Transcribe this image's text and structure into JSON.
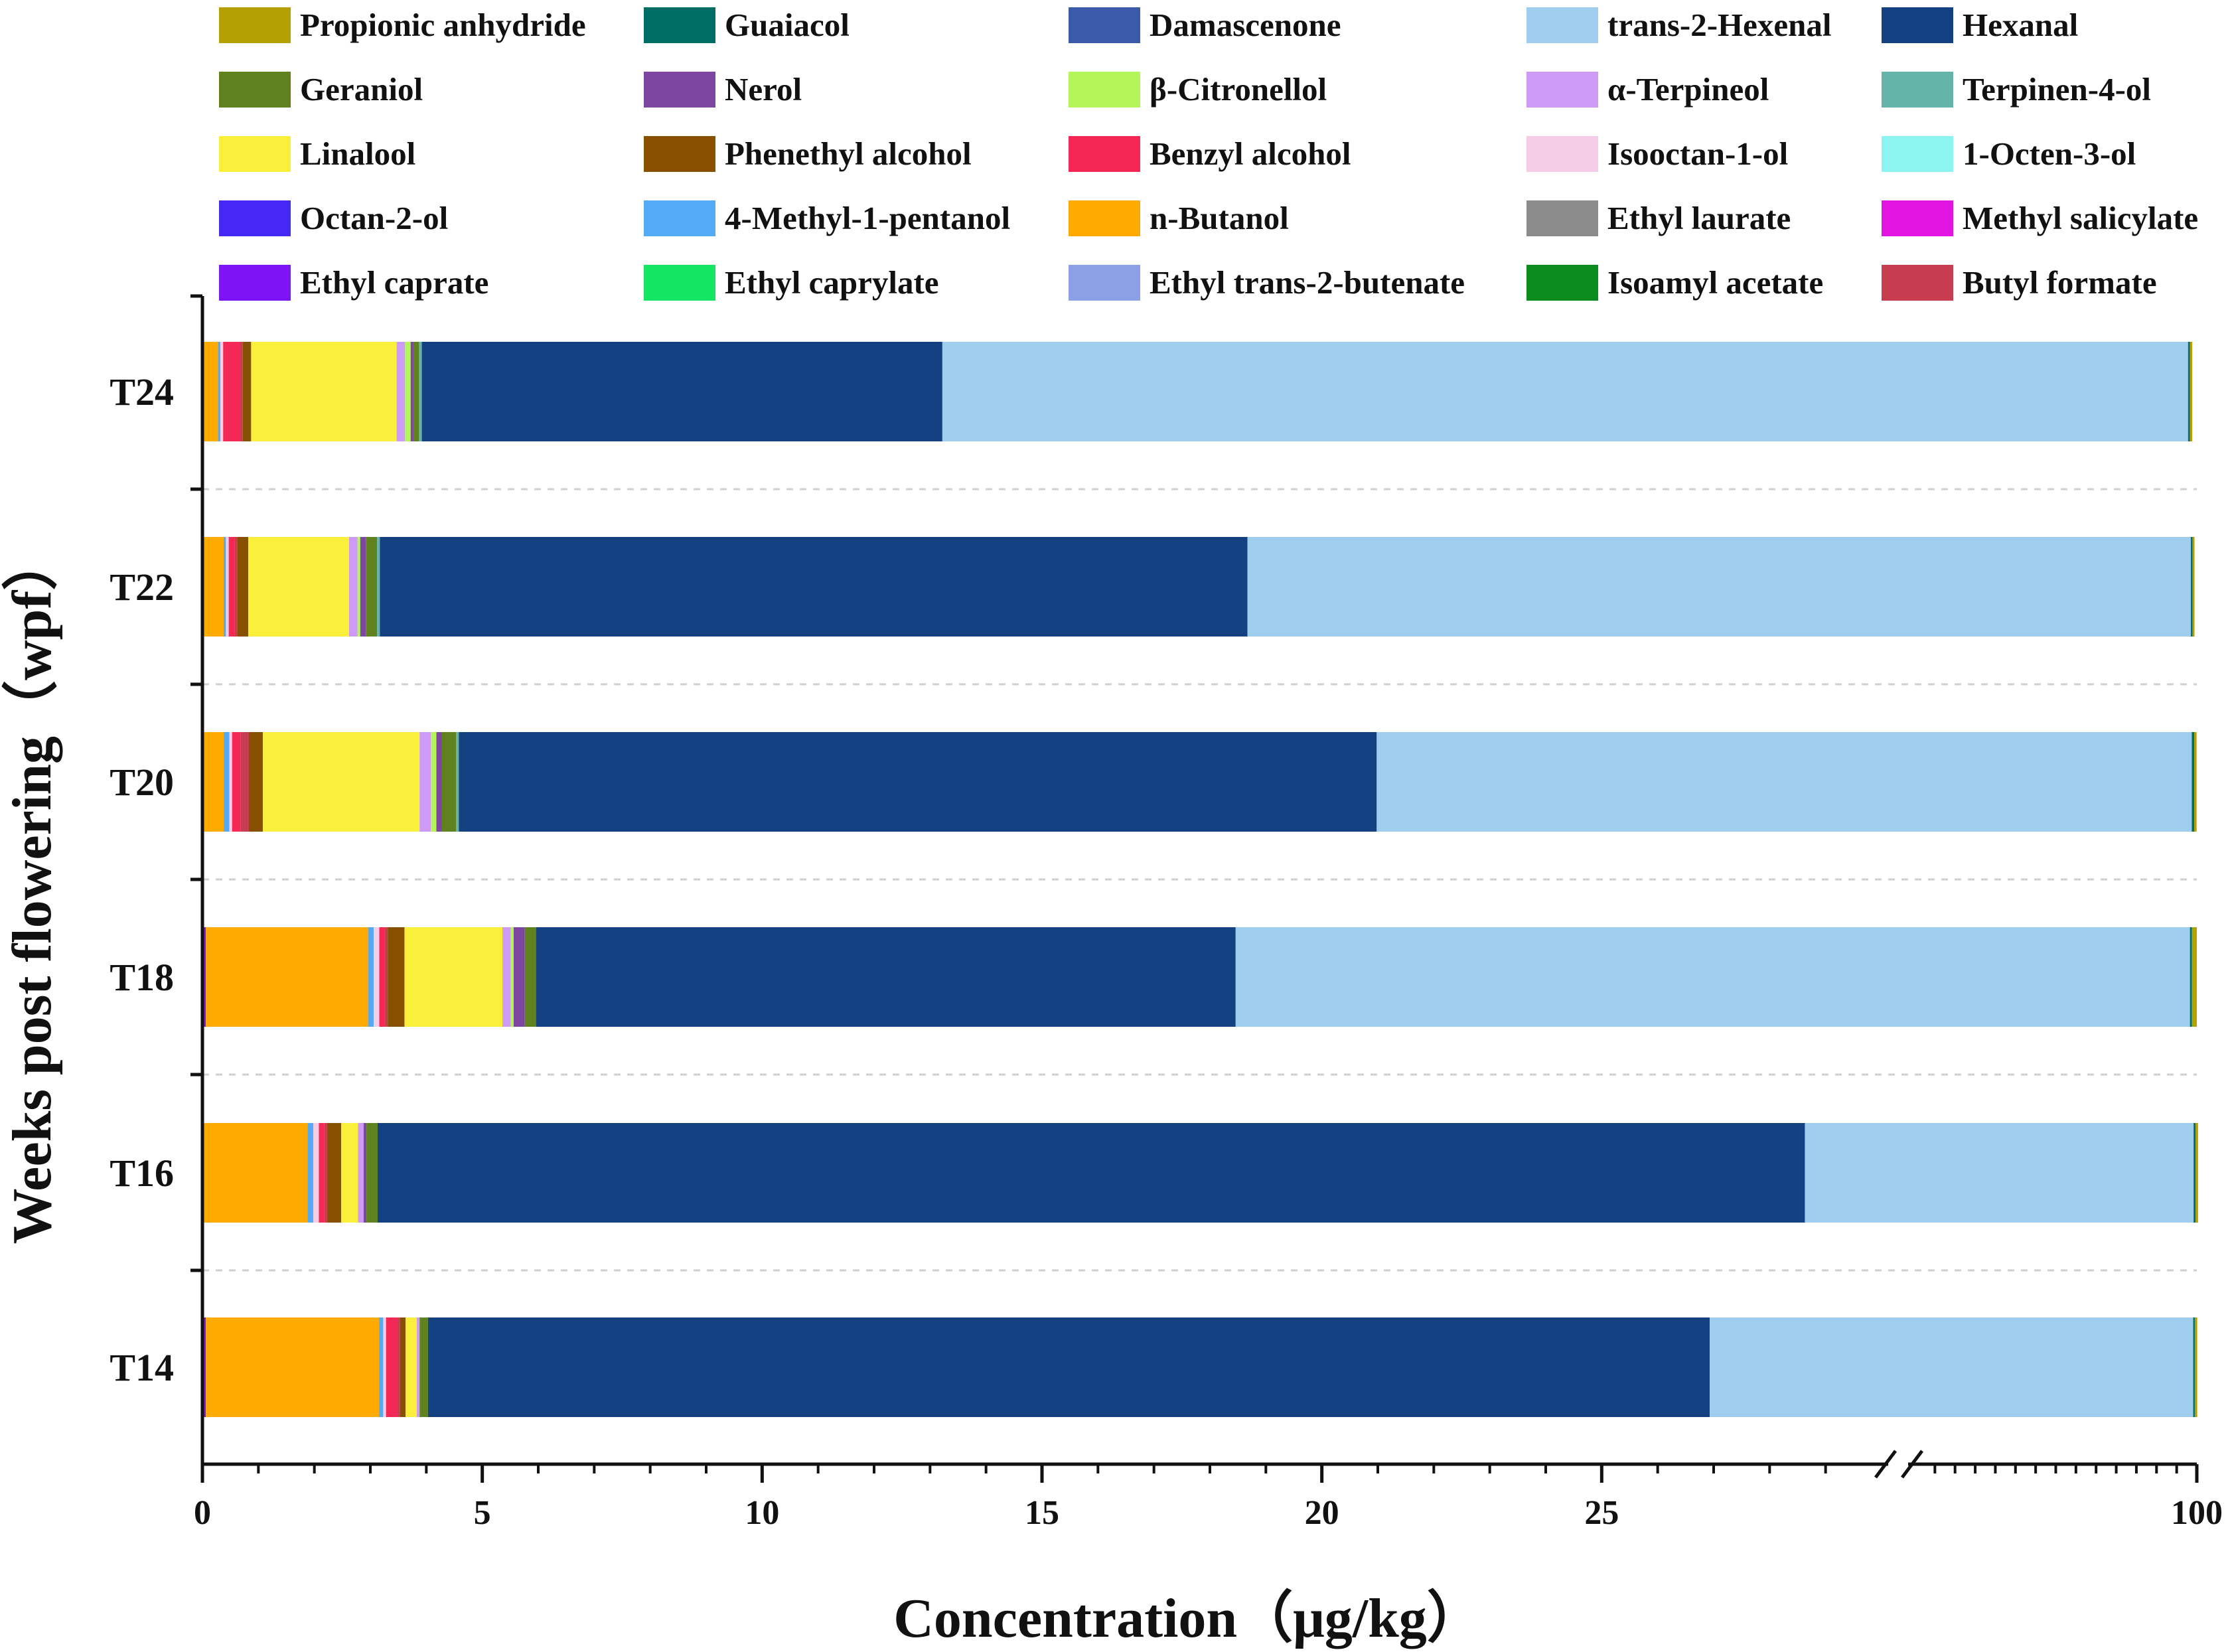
{
  "chart_data": {
    "type": "bar",
    "orientation": "horizontal",
    "stacked": true,
    "xlabel": "Concentration（μg/kg）",
    "ylabel": "Weeks post flowering（wpf）",
    "x_axis": {
      "segment1": {
        "range": [
          0,
          30
        ],
        "ticks": [
          0,
          5,
          10,
          15,
          20,
          25
        ],
        "tick_labels": [
          "0",
          "5",
          "10",
          "15",
          "20",
          "25"
        ]
      },
      "segment2": {
        "range": [
          30,
          100
        ],
        "ticks": [
          100
        ],
        "tick_labels": [
          "100"
        ]
      },
      "axis_break": true
    },
    "categories": [
      "T24",
      "T22",
      "T20",
      "T18",
      "T16",
      "T14"
    ],
    "legend_order": [
      "Propionic anhydride",
      "Guaiacol",
      "Damascenone",
      "trans-2-Hexenal",
      "Hexanal",
      "Geraniol",
      "Nerol",
      "β-Citronellol",
      "α-Terpineol",
      "Terpinen-4-ol",
      "Linalool",
      "Phenethyl alcohol",
      "Benzyl alcohol",
      "Isooctan-1-ol",
      "1-Octen-3-ol",
      "Octan-2-ol",
      "4-Methyl-1-pentanol",
      "n-Butanol",
      "Ethyl laurate",
      "Methyl salicylate",
      "Ethyl caprate",
      "Ethyl caprylate",
      "Ethyl trans-2-butenate",
      "Isoamyl acetate",
      "Butyl formate"
    ],
    "colors": {
      "Propionic anhydride": "#b4a000",
      "Guaiacol": "#006e64",
      "Damascenone": "#3c5aaa",
      "trans-2-Hexenal": "#9ecdee",
      "Hexanal": "#144182",
      "Geraniol": "#5f821e",
      "Nerol": "#7d46a0",
      "β-Citronellol": "#b4f55a",
      "α-Terpineol": "#cd9bf5",
      "Terpinen-4-ol": "#64b4aa",
      "Linalool": "#faf03c",
      "Phenethyl alcohol": "#875000",
      "Benzyl alcohol": "#f52855",
      "Isooctan-1-ol": "#f5cde6",
      "1-Octen-3-ol": "#8cf5f0",
      "Octan-2-ol": "#4628f5",
      "4-Methyl-1-pentanol": "#55aaf5",
      "n-Butanol": "#ffaa00",
      "Ethyl laurate": "#8c8c8c",
      "Methyl salicylate": "#e114e1",
      "Ethyl caprate": "#7d14f5",
      "Ethyl caprylate": "#14e664",
      "Ethyl trans-2-butenate": "#8ca0e6",
      "Isoamyl acetate": "#0a8c1e",
      "Butyl formate": "#c83c50"
    },
    "series_values": {
      "T24": [
        [
          "Octan-2-ol",
          0.03
        ],
        [
          "n-Butanol",
          0.25
        ],
        [
          "4-Methyl-1-pentanol",
          0.04
        ],
        [
          "Isooctan-1-ol",
          0.05
        ],
        [
          "Benzyl alcohol",
          0.3
        ],
        [
          "Butyl formate",
          0.05
        ],
        [
          "Phenethyl alcohol",
          0.15
        ],
        [
          "Linalool",
          2.6
        ],
        [
          "α-Terpineol",
          0.15
        ],
        [
          "β-Citronellol",
          0.1
        ],
        [
          "Nerol",
          0.05
        ],
        [
          "Geraniol",
          0.1
        ],
        [
          "Terpinen-4-ol",
          0.05
        ],
        [
          "Hexanal",
          9.3
        ],
        [
          "trans-2-Hexenal",
          84.6
        ],
        [
          "Damascenone",
          0.05
        ],
        [
          "Guaiacol",
          0.4
        ],
        [
          "Propionic anhydride",
          0.6
        ]
      ],
      "T22": [
        [
          "Octan-2-ol",
          0.03
        ],
        [
          "n-Butanol",
          0.35
        ],
        [
          "4-Methyl-1-pentanol",
          0.04
        ],
        [
          "Isooctan-1-ol",
          0.05
        ],
        [
          "Benzyl alcohol",
          0.1
        ],
        [
          "Butyl formate",
          0.05
        ],
        [
          "Phenethyl alcohol",
          0.2
        ],
        [
          "Linalool",
          1.8
        ],
        [
          "α-Terpineol",
          0.15
        ],
        [
          "β-Citronellol",
          0.05
        ],
        [
          "Nerol",
          0.1
        ],
        [
          "Geraniol",
          0.2
        ],
        [
          "Terpinen-4-ol",
          0.05
        ],
        [
          "Hexanal",
          15.5
        ],
        [
          "trans-2-Hexenal",
          79.85
        ],
        [
          "Guaiacol",
          0.4
        ],
        [
          "Propionic anhydride",
          0.5
        ]
      ],
      "T20": [
        [
          "Octan-2-ol",
          0.03
        ],
        [
          "n-Butanol",
          0.35
        ],
        [
          "4-Methyl-1-pentanol",
          0.1
        ],
        [
          "Isooctan-1-ol",
          0.05
        ],
        [
          "Benzyl alcohol",
          0.15
        ],
        [
          "Butyl formate",
          0.15
        ],
        [
          "Phenethyl alcohol",
          0.25
        ],
        [
          "Linalool",
          2.8
        ],
        [
          "α-Terpineol",
          0.2
        ],
        [
          "β-Citronellol",
          0.1
        ],
        [
          "Nerol",
          0.1
        ],
        [
          "Geraniol",
          0.25
        ],
        [
          "Terpinen-4-ol",
          0.05
        ],
        [
          "Hexanal",
          16.4
        ],
        [
          "trans-2-Hexenal",
          77.77
        ],
        [
          "Guaiacol",
          0.6
        ],
        [
          "Propionic anhydride",
          0.6
        ]
      ],
      "T18": [
        [
          "Octan-2-ol",
          0.03
        ],
        [
          "Ethyl caprate",
          0.03
        ],
        [
          "n-Butanol",
          2.9
        ],
        [
          "4-Methyl-1-pentanol",
          0.1
        ],
        [
          "Isooctan-1-ol",
          0.1
        ],
        [
          "Benzyl alcohol",
          0.1
        ],
        [
          "Butyl formate",
          0.05
        ],
        [
          "Phenethyl alcohol",
          0.3
        ],
        [
          "Linalool",
          1.75
        ],
        [
          "α-Terpineol",
          0.15
        ],
        [
          "β-Citronellol",
          0.05
        ],
        [
          "Nerol",
          0.2
        ],
        [
          "Geraniol",
          0.2
        ],
        [
          "Hexanal",
          12.5
        ],
        [
          "trans-2-Hexenal",
          79.84
        ],
        [
          "Guaiacol",
          0.5
        ],
        [
          "Propionic anhydride",
          1.2
        ]
      ],
      "T16": [
        [
          "Octan-2-ol",
          0.03
        ],
        [
          "n-Butanol",
          1.85
        ],
        [
          "4-Methyl-1-pentanol",
          0.1
        ],
        [
          "Isooctan-1-ol",
          0.1
        ],
        [
          "Benzyl alcohol",
          0.1
        ],
        [
          "Butyl formate",
          0.05
        ],
        [
          "Phenethyl alcohol",
          0.25
        ],
        [
          "Linalool",
          0.3
        ],
        [
          "α-Terpineol",
          0.1
        ],
        [
          "Nerol",
          0.05
        ],
        [
          "Geraniol",
          0.2
        ],
        [
          "Hexanal",
          25.5
        ],
        [
          "trans-2-Hexenal",
          70.57
        ],
        [
          "Guaiacol",
          0.5
        ],
        [
          "Propionic anhydride",
          0.6
        ]
      ],
      "T14": [
        [
          "Octan-2-ol",
          0.03
        ],
        [
          "Ethyl caprate",
          0.03
        ],
        [
          "n-Butanol",
          3.1
        ],
        [
          "4-Methyl-1-pentanol",
          0.07
        ],
        [
          "Isooctan-1-ol",
          0.05
        ],
        [
          "Benzyl alcohol",
          0.2
        ],
        [
          "Butyl formate",
          0.05
        ],
        [
          "Phenethyl alcohol",
          0.1
        ],
        [
          "Linalool",
          0.2
        ],
        [
          "α-Terpineol",
          0.05
        ],
        [
          "Geraniol",
          0.15
        ],
        [
          "Hexanal",
          22.9
        ],
        [
          "trans-2-Hexenal",
          72.17
        ],
        [
          "Guaiacol",
          0.4
        ],
        [
          "Propionic anhydride",
          0.6
        ]
      ]
    }
  }
}
